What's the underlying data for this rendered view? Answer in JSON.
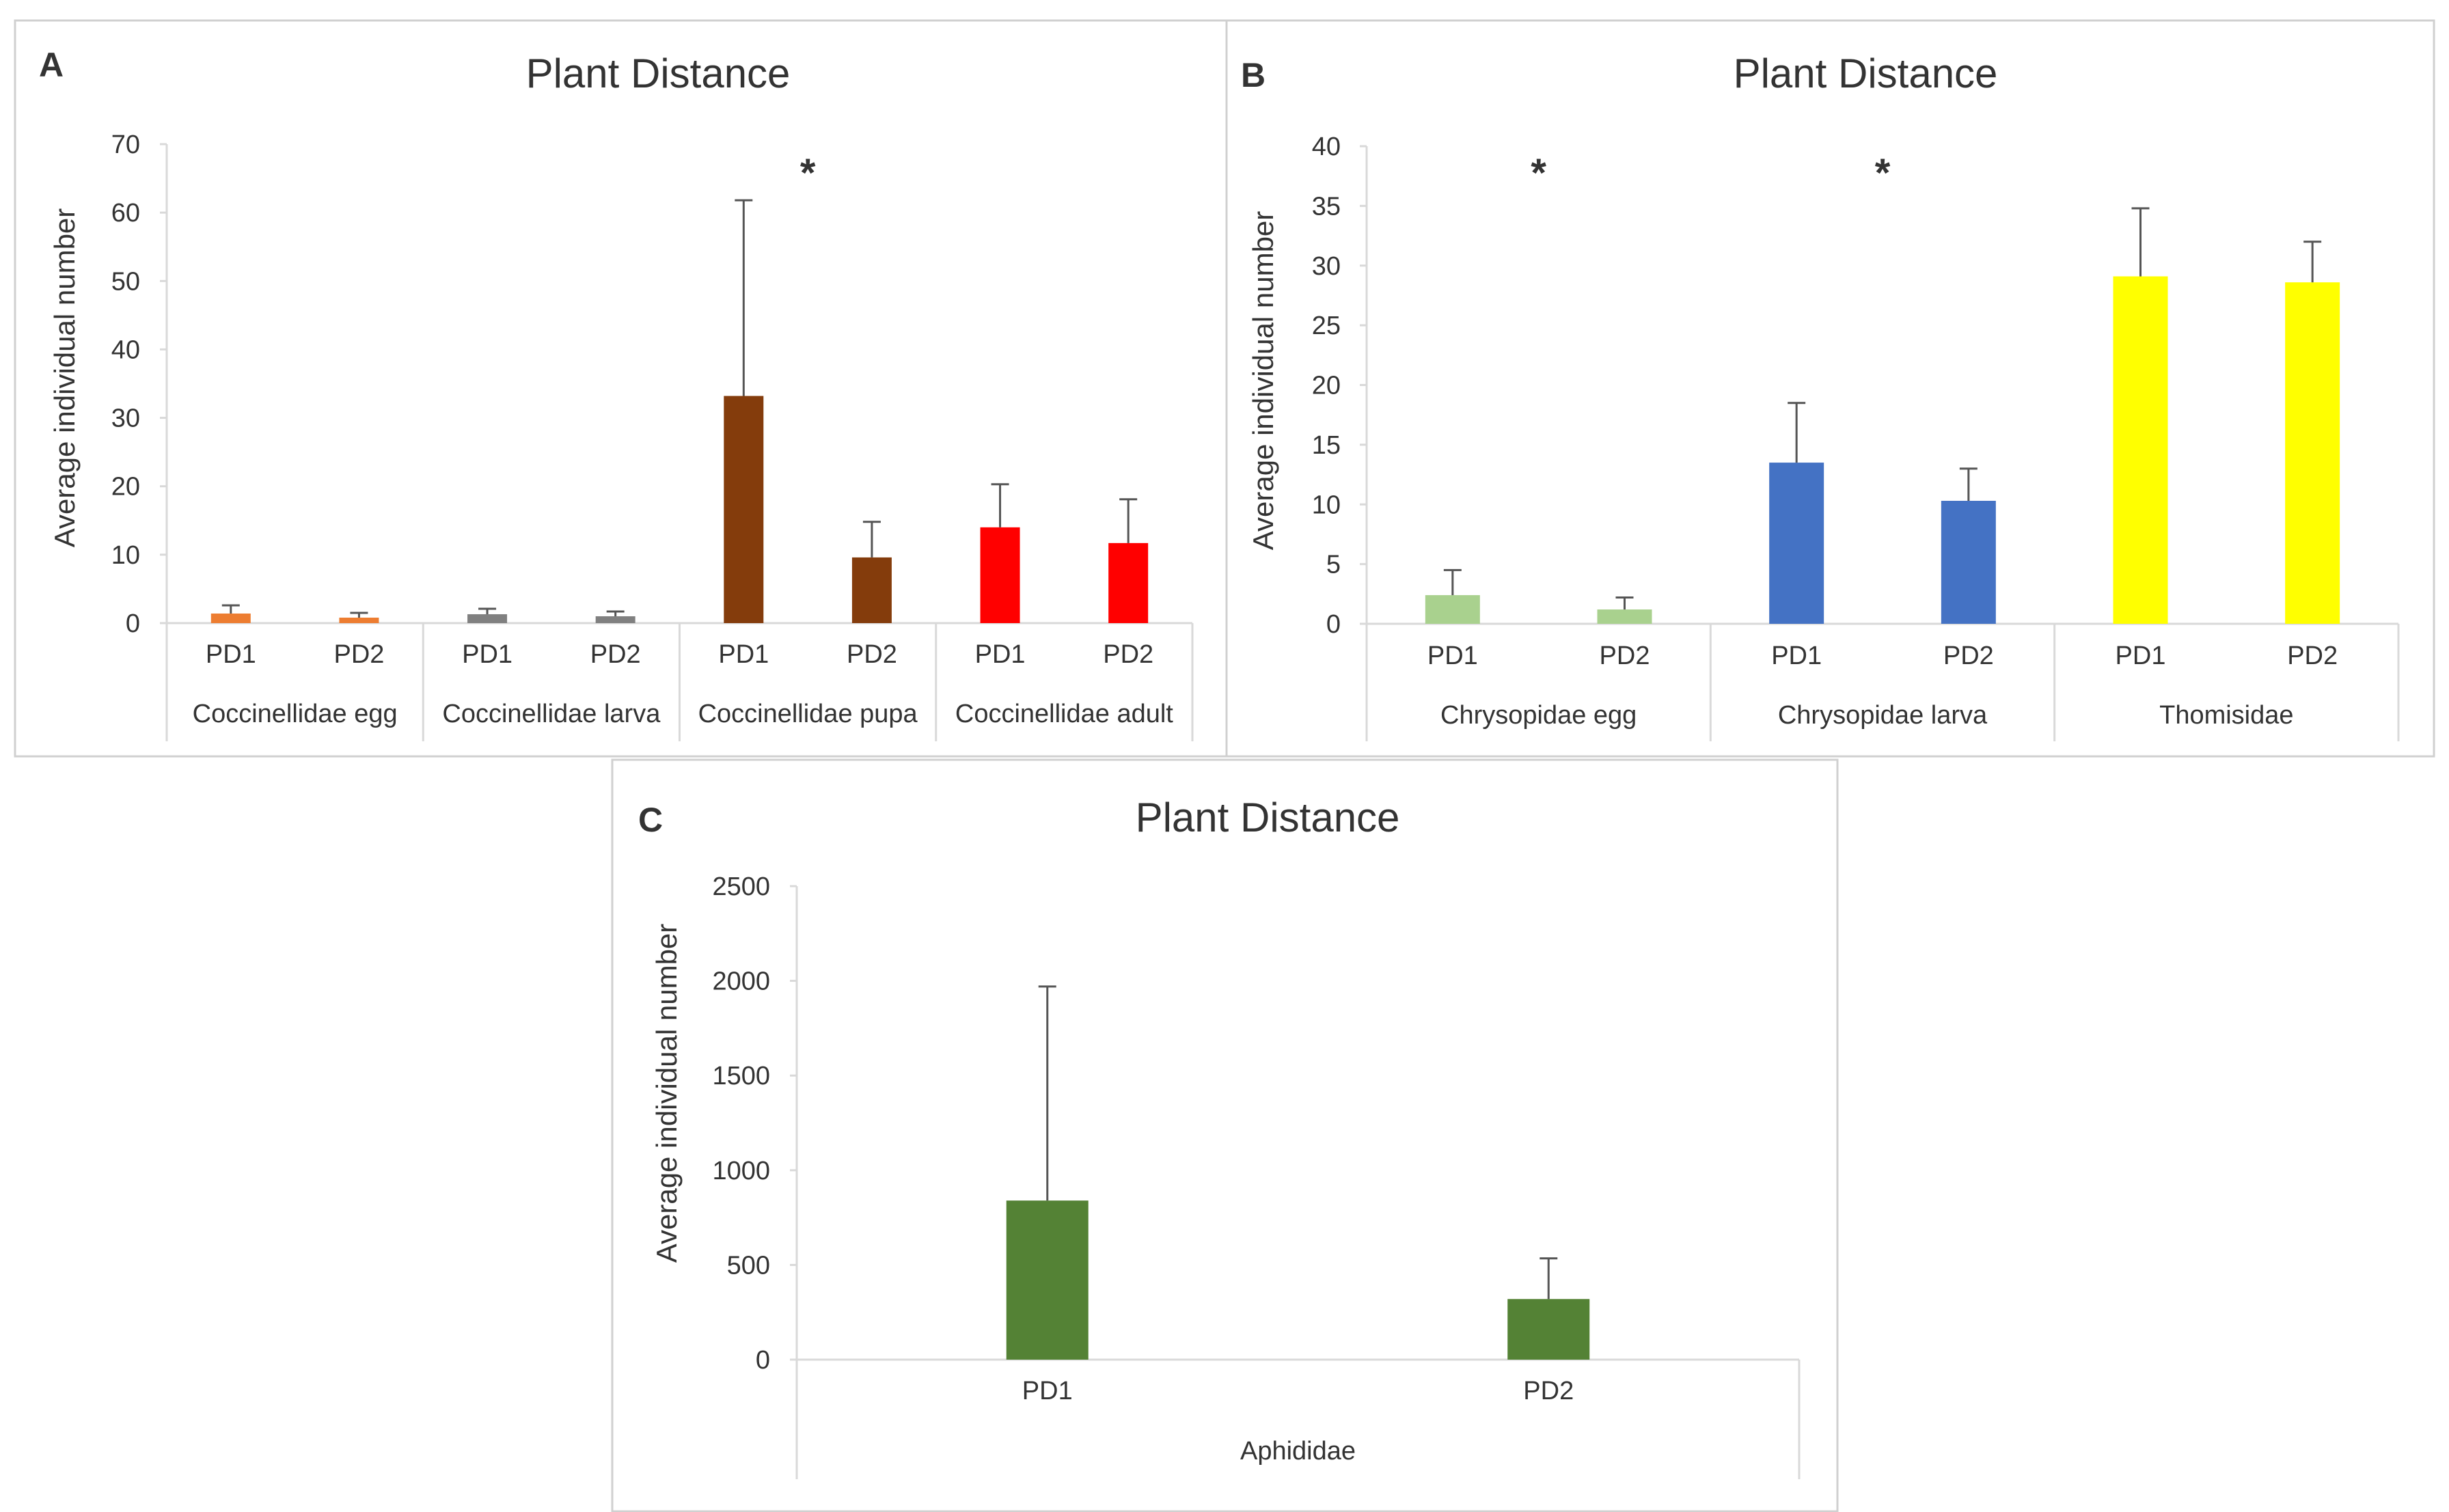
{
  "chart_data": [
    {
      "panel": "A",
      "type": "bar",
      "title": "Plant Distance",
      "ylabel": "Average individual number",
      "xlabel": "",
      "ylim": [
        0,
        70
      ],
      "yticks": [
        0,
        10,
        20,
        30,
        40,
        50,
        60,
        70
      ],
      "groups": [
        "Coccinellidae egg",
        "Coccinellidae larva",
        "Coccinellidae pupa",
        "Coccinellidae adult"
      ],
      "categories": [
        "PD1",
        "PD2"
      ],
      "bars": [
        {
          "group": "Coccinellidae egg",
          "label": "PD1",
          "value": 1.4,
          "error": 1.2,
          "color": "#ED7D31"
        },
        {
          "group": "Coccinellidae egg",
          "label": "PD2",
          "value": 0.8,
          "error": 0.7,
          "color": "#ED7D31"
        },
        {
          "group": "Coccinellidae larva",
          "label": "PD1",
          "value": 1.3,
          "error": 0.8,
          "color": "#808080"
        },
        {
          "group": "Coccinellidae larva",
          "label": "PD2",
          "value": 1.0,
          "error": 0.7,
          "color": "#808080"
        },
        {
          "group": "Coccinellidae pupa",
          "label": "PD1",
          "value": 33.2,
          "error": 28.6,
          "color": "#843C0C"
        },
        {
          "group": "Coccinellidae pupa",
          "label": "PD2",
          "value": 9.6,
          "error": 5.2,
          "color": "#843C0C"
        },
        {
          "group": "Coccinellidae adult",
          "label": "PD1",
          "value": 14.0,
          "error": 6.3,
          "color": "#FF0000"
        },
        {
          "group": "Coccinellidae adult",
          "label": "PD2",
          "value": 11.7,
          "error": 6.4,
          "color": "#FF0000"
        }
      ],
      "annotations": [
        {
          "text": "*",
          "group": "Coccinellidae pupa"
        }
      ]
    },
    {
      "panel": "B",
      "type": "bar",
      "title": "Plant Distance",
      "ylabel": "Average individual number",
      "xlabel": "",
      "ylim": [
        0,
        40
      ],
      "yticks": [
        0,
        5,
        10,
        15,
        20,
        25,
        30,
        35,
        40
      ],
      "groups": [
        "Chrysopidae egg",
        "Chrysopidae larva",
        "Thomisidae"
      ],
      "categories": [
        "PD1",
        "PD2"
      ],
      "bars": [
        {
          "group": "Chrysopidae egg",
          "label": "PD1",
          "value": 2.4,
          "error": 2.1,
          "color": "#A9D18E"
        },
        {
          "group": "Chrysopidae egg",
          "label": "PD2",
          "value": 1.2,
          "error": 1.0,
          "color": "#A9D18E"
        },
        {
          "group": "Chrysopidae larva",
          "label": "PD1",
          "value": 13.5,
          "error": 5.0,
          "color": "#4472C4"
        },
        {
          "group": "Chrysopidae larva",
          "label": "PD2",
          "value": 10.3,
          "error": 2.7,
          "color": "#4472C4"
        },
        {
          "group": "Thomisidae",
          "label": "PD1",
          "value": 29.1,
          "error": 5.7,
          "color": "#FFFF00"
        },
        {
          "group": "Thomisidae",
          "label": "PD2",
          "value": 28.6,
          "error": 3.4,
          "color": "#FFFF00"
        }
      ],
      "annotations": [
        {
          "text": "*",
          "group": "Chrysopidae egg"
        },
        {
          "text": "*",
          "group": "Chrysopidae larva"
        }
      ]
    },
    {
      "panel": "C",
      "type": "bar",
      "title": "Plant Distance",
      "ylabel": "Average individual number",
      "xlabel": "",
      "ylim": [
        0,
        2500
      ],
      "yticks": [
        0,
        500,
        1000,
        1500,
        2000,
        2500
      ],
      "groups": [
        "Aphididae"
      ],
      "categories": [
        "PD1",
        "PD2"
      ],
      "bars": [
        {
          "group": "Aphididae",
          "label": "PD1",
          "value": 840,
          "error": 1130,
          "color": "#548235"
        },
        {
          "group": "Aphididae",
          "label": "PD2",
          "value": 320,
          "error": 215,
          "color": "#548235"
        }
      ],
      "annotations": []
    }
  ]
}
